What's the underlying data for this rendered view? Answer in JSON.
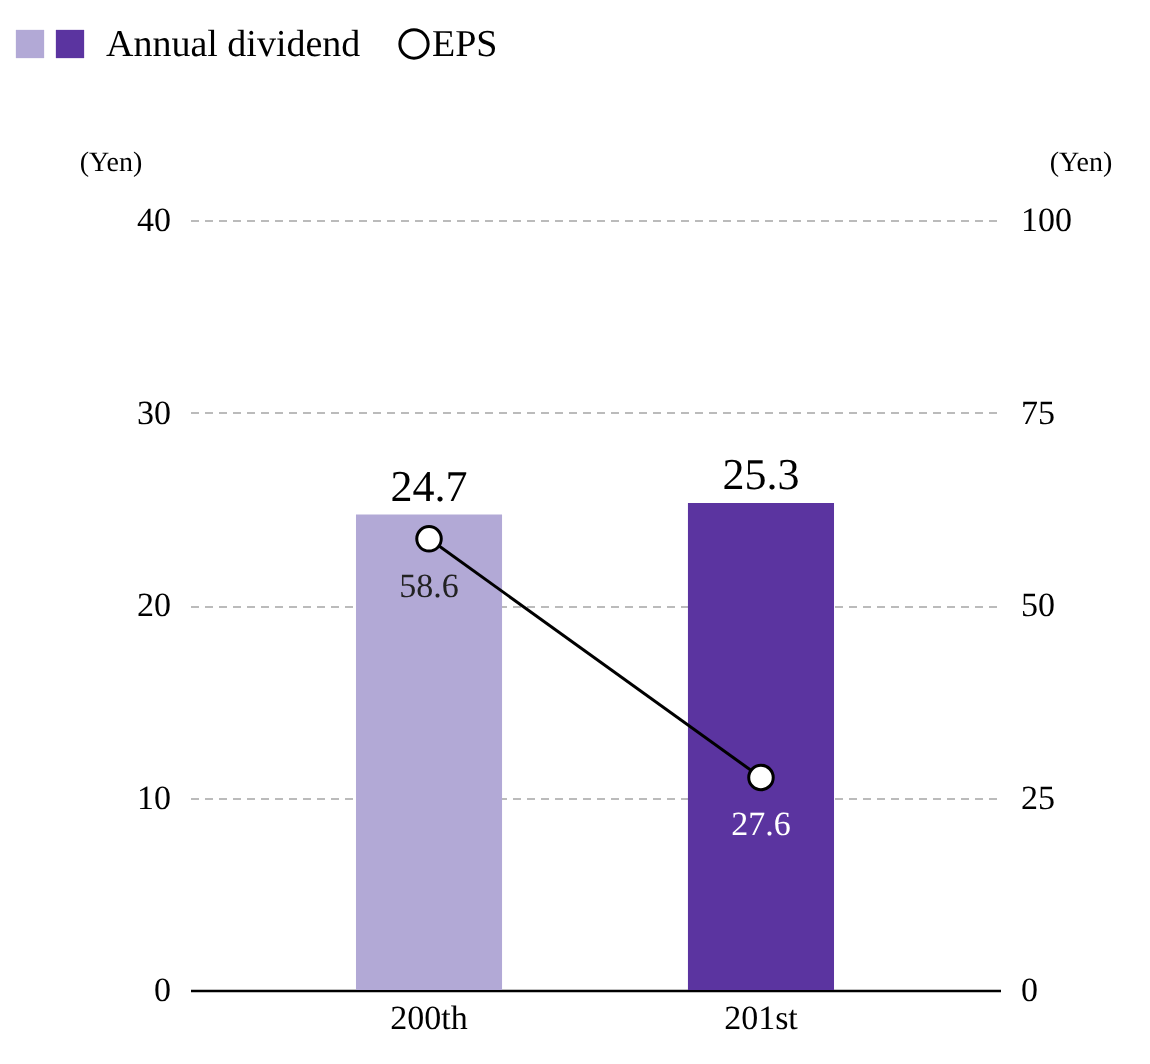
{
  "chart_data": {
    "type": "bar",
    "categories": [
      "200th",
      "201st"
    ],
    "ylabel": "(Yen)",
    "y2label": "(Yen)",
    "ylim": [
      0,
      40
    ],
    "yticks": [
      0,
      10,
      20,
      30,
      40
    ],
    "y2lim": [
      0,
      100
    ],
    "y2ticks": [
      0,
      25,
      50,
      75,
      100
    ],
    "grid": "y",
    "legend": "top left",
    "data_labels": true,
    "series": [
      {
        "name": "Annual dividend",
        "colors": [
          "#b2a9d6",
          "#5b34a0"
        ],
        "values": [
          24.7,
          25.3
        ]
      },
      {
        "name": "EPS",
        "type": "line",
        "axis": "y2",
        "color": "#000000",
        "marker": "circle",
        "line_style": "solid",
        "values": [
          58.6,
          27.6
        ]
      }
    ]
  }
}
